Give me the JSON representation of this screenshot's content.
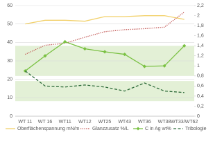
{
  "chart_data": {
    "type": "line",
    "categories": [
      "WT 11",
      "WT 16",
      "WT11",
      "WT12",
      "WT25",
      "WT43",
      "WT36",
      "WT38",
      "WT33/WT62"
    ],
    "ylim": [
      0,
      60
    ],
    "yticks": [
      0,
      10,
      20,
      30,
      40,
      50,
      60
    ],
    "y2lim": [
      0,
      2.2
    ],
    "y2ticks": [
      0,
      {
        "value": 0.2,
        "label": "0,2"
      },
      {
        "value": 0.4,
        "label": "0,4"
      },
      {
        "value": 0.6,
        "label": "0,6"
      },
      {
        "value": 0.8,
        "label": "0,8"
      },
      1,
      {
        "value": 1.2,
        "label": "1,2"
      },
      {
        "value": 1.4,
        "label": "1,4"
      },
      {
        "value": 1.6,
        "label": "1,6"
      },
      {
        "value": 1.8,
        "label": "1,8"
      },
      2,
      {
        "value": 2.2,
        "label": "2,2"
      }
    ],
    "grid": true,
    "bands": [
      {
        "axis": "y2",
        "from": 0.8,
        "to": 1.4,
        "color": "#e3f0d6"
      },
      {
        "axis": "y2",
        "from": 0.3,
        "to": 0.7,
        "color": "#e3f0d6"
      }
    ],
    "series": [
      {
        "name": "Oberflächenspannung mN/m",
        "color": "#f2d16b",
        "style": "solid",
        "values": [
          50,
          52,
          52,
          51.5,
          54,
          54,
          54.5,
          54.5,
          52.5
        ]
      },
      {
        "name": "Glanzzusatz %/L",
        "color": "#c0504d",
        "style": "dotted",
        "axis": "y2",
        "values": [
          1.23,
          1.41,
          1.45,
          1.57,
          1.68,
          1.72,
          1.74,
          1.77,
          2.07
        ]
      },
      {
        "name": "C in Ag wt%",
        "color": "#7ac143",
        "style": "solid",
        "marker": "diamond",
        "axis": "y2",
        "values": [
          0.9,
          1.2,
          1.48,
          1.34,
          1.28,
          1.23,
          0.99,
          1.0,
          1.4
        ]
      },
      {
        "name": "Tribologie",
        "color": "#2e6b3a",
        "style": "dashed",
        "axis": "y2",
        "values": [
          0.9,
          0.6,
          0.58,
          0.62,
          0.58,
          0.5,
          0.66,
          0.5,
          0.47
        ]
      }
    ]
  }
}
